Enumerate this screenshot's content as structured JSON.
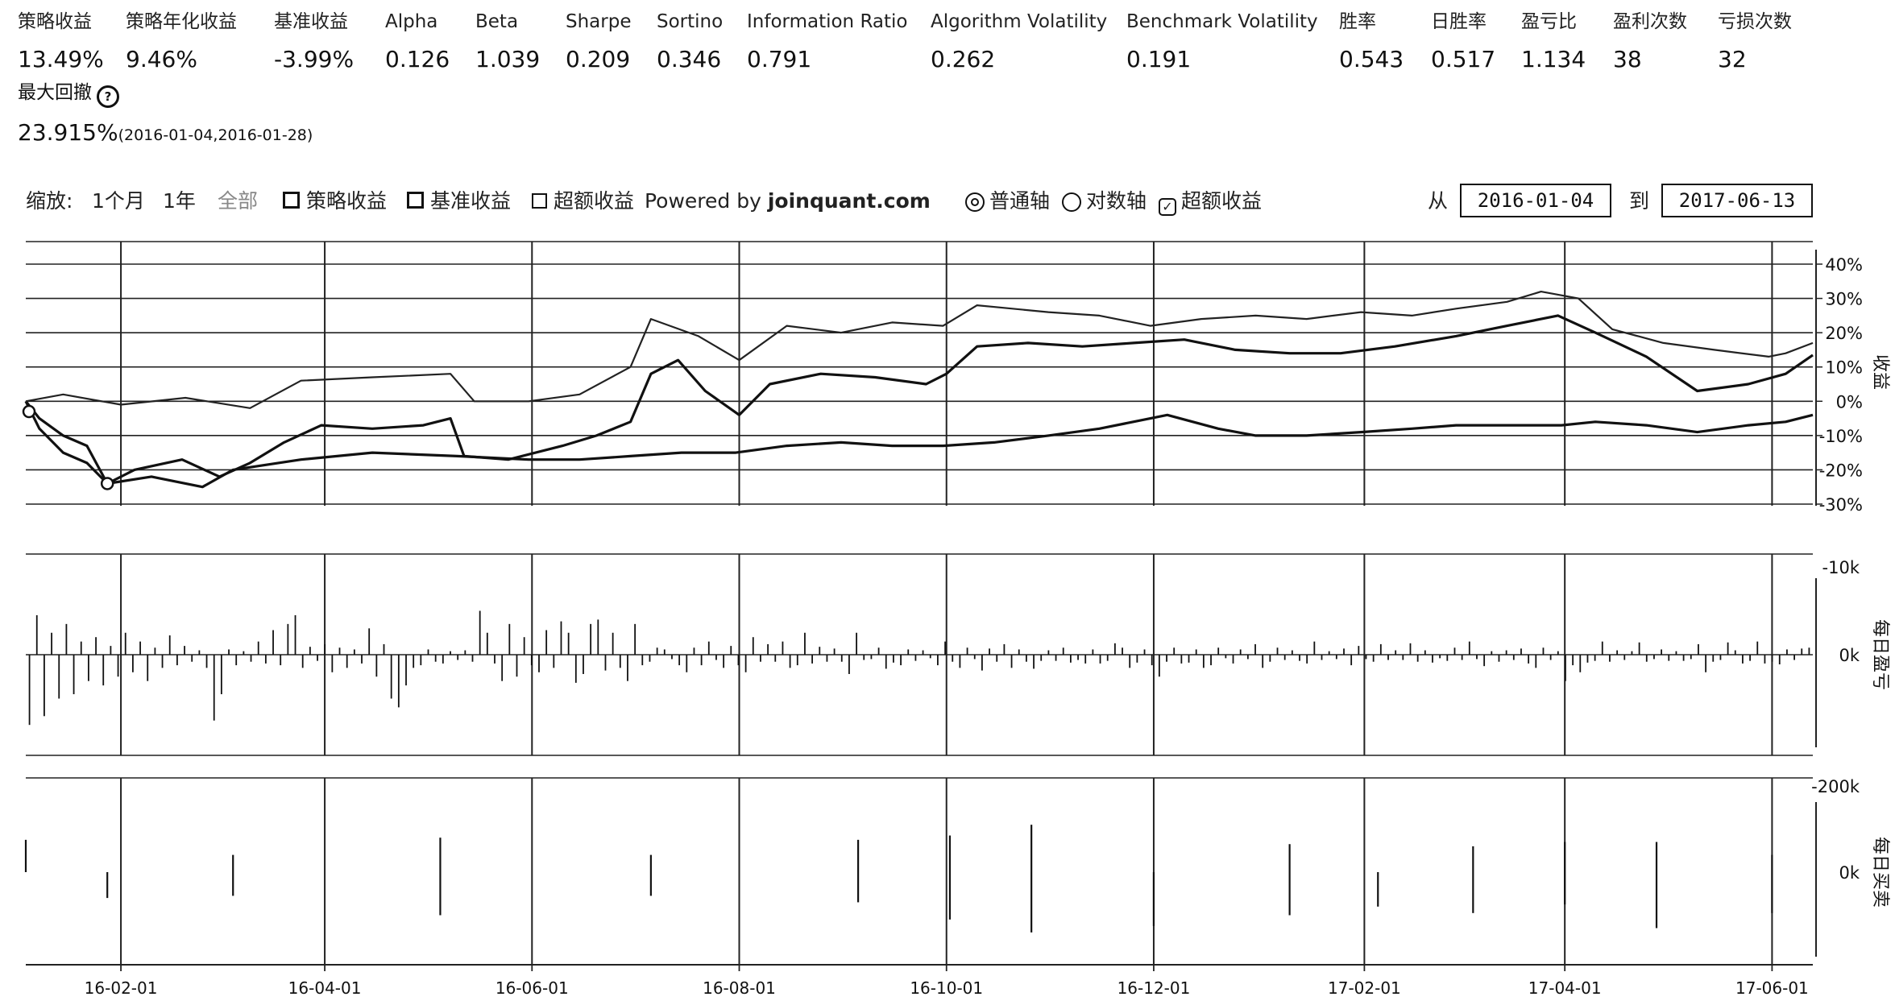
{
  "stats": [
    {
      "label": "策略收益",
      "value": "13.49%"
    },
    {
      "label": "策略年化收益",
      "value": "9.46%"
    },
    {
      "label": "基准收益",
      "value": "-3.99%"
    },
    {
      "label": "Alpha",
      "value": "0.126"
    },
    {
      "label": "Beta",
      "value": "1.039"
    },
    {
      "label": "Sharpe",
      "value": "0.209"
    },
    {
      "label": "Sortino",
      "value": "0.346"
    },
    {
      "label": "Information Ratio",
      "value": "0.791"
    },
    {
      "label": "Algorithm Volatility",
      "value": "0.262"
    },
    {
      "label": "Benchmark Volatility",
      "value": "0.191"
    },
    {
      "label": "胜率",
      "value": "0.543"
    },
    {
      "label": "日胜率",
      "value": "0.517"
    },
    {
      "label": "盈亏比",
      "value": "1.134"
    },
    {
      "label": "盈利次数",
      "value": "38"
    },
    {
      "label": "亏损次数",
      "value": "32"
    }
  ],
  "max_drawdown": {
    "label": "最大回撤",
    "icon": "question-circle-icon",
    "value": "23.915%",
    "period": "(2016-01-04,2016-01-28)"
  },
  "controls": {
    "zoom_label": "缩放:",
    "zoom_options": [
      "1个月",
      "1年",
      "全部"
    ],
    "series_toggles": [
      {
        "label": "策略收益",
        "checked": true
      },
      {
        "label": "基准收益",
        "checked": true
      },
      {
        "label": "超额收益",
        "checked": false
      }
    ],
    "powered_by": "Powered by",
    "brand": "joinquant.com",
    "axis_options": [
      {
        "label": "普通轴",
        "selected": true
      },
      {
        "label": "对数轴",
        "selected": false
      }
    ],
    "excess_checkbox": {
      "label": "超额收益",
      "checked": true
    },
    "from_label": "从",
    "from_date": "2016-01-04",
    "to_label": "到",
    "to_date": "2017-06-13"
  },
  "chart_data": [
    {
      "type": "line",
      "axis_title": "收益",
      "x_range": [
        "2016-01-04",
        "2017-06-13"
      ],
      "ylim": [
        -30,
        40
      ],
      "y_ticks": [
        "40%",
        "30%",
        "20%",
        "10%",
        "0%",
        "-10%",
        "-20%",
        "-30%"
      ],
      "x_ticks": [
        "16-02-01",
        "16-04-01",
        "16-06-01",
        "16-08-01",
        "16-10-01",
        "16-12-01",
        "17-02-01",
        "17-04-01",
        "17-06-01"
      ],
      "grid": true,
      "series": [
        {
          "name": "策略收益",
          "points": [
            [
              "2016-01-04",
              0
            ],
            [
              "2016-01-08",
              -5
            ],
            [
              "2016-01-15",
              -10
            ],
            [
              "2016-01-22",
              -13
            ],
            [
              "2016-01-28",
              -24
            ],
            [
              "2016-02-05",
              -20
            ],
            [
              "2016-02-19",
              -17
            ],
            [
              "2016-03-01",
              -22
            ],
            [
              "2016-03-10",
              -18
            ],
            [
              "2016-03-20",
              -12
            ],
            [
              "2016-03-31",
              -7
            ],
            [
              "2016-04-15",
              -8
            ],
            [
              "2016-04-30",
              -7
            ],
            [
              "2016-05-08",
              -5
            ],
            [
              "2016-05-12",
              -16
            ],
            [
              "2016-05-25",
              -17
            ],
            [
              "2016-06-10",
              -13
            ],
            [
              "2016-06-20",
              -10
            ],
            [
              "2016-06-30",
              -6
            ],
            [
              "2016-07-06",
              8
            ],
            [
              "2016-07-14",
              12
            ],
            [
              "2016-07-22",
              3
            ],
            [
              "2016-08-01",
              -4
            ],
            [
              "2016-08-10",
              5
            ],
            [
              "2016-08-25",
              8
            ],
            [
              "2016-09-10",
              7
            ],
            [
              "2016-09-25",
              5
            ],
            [
              "2016-10-01",
              8
            ],
            [
              "2016-10-10",
              16
            ],
            [
              "2016-10-25",
              17
            ],
            [
              "2016-11-10",
              16
            ],
            [
              "2016-11-25",
              17
            ],
            [
              "2016-12-10",
              18
            ],
            [
              "2016-12-25",
              15
            ],
            [
              "2017-01-10",
              14
            ],
            [
              "2017-01-25",
              14
            ],
            [
              "2017-02-10",
              16
            ],
            [
              "2017-02-28",
              19
            ],
            [
              "2017-03-15",
              22
            ],
            [
              "2017-03-30",
              25
            ],
            [
              "2017-04-10",
              20
            ],
            [
              "2017-04-25",
              13
            ],
            [
              "2017-05-10",
              3
            ],
            [
              "2017-05-25",
              5
            ],
            [
              "2017-06-05",
              8
            ],
            [
              "2017-06-13",
              13.49
            ]
          ]
        },
        {
          "name": "基准收益",
          "points": [
            [
              "2016-01-04",
              0
            ],
            [
              "2016-01-08",
              -8
            ],
            [
              "2016-01-15",
              -15
            ],
            [
              "2016-01-22",
              -18
            ],
            [
              "2016-01-28",
              -24
            ],
            [
              "2016-02-10",
              -22
            ],
            [
              "2016-02-25",
              -25
            ],
            [
              "2016-03-05",
              -20
            ],
            [
              "2016-03-25",
              -17
            ],
            [
              "2016-04-15",
              -15
            ],
            [
              "2016-05-10",
              -16
            ],
            [
              "2016-05-31",
              -17
            ],
            [
              "2016-06-15",
              -17
            ],
            [
              "2016-06-30",
              -16
            ],
            [
              "2016-07-15",
              -15
            ],
            [
              "2016-07-31",
              -15
            ],
            [
              "2016-08-15",
              -13
            ],
            [
              "2016-08-31",
              -12
            ],
            [
              "2016-09-15",
              -13
            ],
            [
              "2016-09-30",
              -13
            ],
            [
              "2016-10-15",
              -12
            ],
            [
              "2016-10-31",
              -10
            ],
            [
              "2016-11-15",
              -8
            ],
            [
              "2016-11-30",
              -5
            ],
            [
              "2016-12-05",
              -4
            ],
            [
              "2016-12-20",
              -8
            ],
            [
              "2016-12-31",
              -10
            ],
            [
              "2017-01-15",
              -10
            ],
            [
              "2017-01-31",
              -9
            ],
            [
              "2017-02-15",
              -8
            ],
            [
              "2017-02-28",
              -7
            ],
            [
              "2017-03-15",
              -7
            ],
            [
              "2017-03-31",
              -7
            ],
            [
              "2017-04-10",
              -6
            ],
            [
              "2017-04-25",
              -7
            ],
            [
              "2017-05-10",
              -9
            ],
            [
              "2017-05-25",
              -7
            ],
            [
              "2017-06-05",
              -6
            ],
            [
              "2017-06-13",
              -3.99
            ]
          ]
        },
        {
          "name": "超额收益",
          "points": [
            [
              "2016-01-04",
              0
            ],
            [
              "2016-01-15",
              2
            ],
            [
              "2016-02-01",
              -1
            ],
            [
              "2016-02-20",
              1
            ],
            [
              "2016-03-10",
              -2
            ],
            [
              "2016-03-25",
              6
            ],
            [
              "2016-04-15",
              7
            ],
            [
              "2016-05-08",
              8
            ],
            [
              "2016-05-15",
              0
            ],
            [
              "2016-05-31",
              0
            ],
            [
              "2016-06-15",
              2
            ],
            [
              "2016-06-30",
              10
            ],
            [
              "2016-07-06",
              24
            ],
            [
              "2016-07-20",
              19
            ],
            [
              "2016-08-01",
              12
            ],
            [
              "2016-08-15",
              22
            ],
            [
              "2016-08-31",
              20
            ],
            [
              "2016-09-15",
              23
            ],
            [
              "2016-09-30",
              22
            ],
            [
              "2016-10-10",
              28
            ],
            [
              "2016-10-31",
              26
            ],
            [
              "2016-11-15",
              25
            ],
            [
              "2016-11-30",
              22
            ],
            [
              "2016-12-15",
              24
            ],
            [
              "2016-12-31",
              25
            ],
            [
              "2017-01-15",
              24
            ],
            [
              "2017-01-31",
              26
            ],
            [
              "2017-02-15",
              25
            ],
            [
              "2017-02-28",
              27
            ],
            [
              "2017-03-15",
              29
            ],
            [
              "2017-03-25",
              32
            ],
            [
              "2017-04-05",
              30
            ],
            [
              "2017-04-15",
              21
            ],
            [
              "2017-04-30",
              17
            ],
            [
              "2017-05-15",
              15
            ],
            [
              "2017-05-31",
              13
            ],
            [
              "2017-06-05",
              14
            ],
            [
              "2017-06-13",
              17
            ]
          ]
        }
      ]
    },
    {
      "type": "bar",
      "axis_title": "每日盈亏",
      "y_ticks": [
        "0k",
        "-10k"
      ],
      "ylim": [
        -10000,
        6000
      ],
      "values": [
        -8000,
        4500,
        -7000,
        2500,
        -5000,
        3500,
        -4500,
        1500,
        -3000,
        2000,
        -3500,
        1000,
        -2500,
        2500,
        -2000,
        1500,
        -3000,
        800,
        -1500,
        2200,
        -1200,
        1000,
        -800,
        500,
        -1500,
        -7500,
        -4500,
        600,
        -1200,
        400,
        -800,
        1500,
        -1000,
        2800,
        -1200,
        3500,
        4500,
        -1500,
        900,
        -700,
        1200,
        -2000,
        800,
        -1500,
        600,
        -1000,
        3000,
        -2500,
        1200,
        -5000,
        -6000,
        -3500,
        -1500,
        -1200,
        600,
        -800,
        -1000,
        400,
        -600,
        500,
        -800,
        5000,
        2500,
        -1000,
        -3000,
        3500,
        -2500,
        2000,
        -1200,
        -2000,
        2800,
        -1500,
        3800,
        2500,
        -3200,
        -2200,
        3500,
        4000,
        -1800,
        2500,
        -1500,
        -3000,
        3500,
        -1200,
        -800,
        800,
        600,
        -500,
        -1200,
        -2000,
        800,
        -1200,
        1500,
        -600,
        -1500,
        1000,
        -1200,
        -2000,
        2000,
        -800,
        1200,
        -800,
        1500,
        -1500,
        -1200,
        2500,
        -1000,
        900,
        -800,
        700,
        -800,
        -2200,
        2500,
        -600,
        -500,
        800,
        -1600,
        -900,
        -1200,
        600,
        -700,
        500,
        -400,
        -1200,
        1500,
        -800,
        -1500,
        800,
        -500,
        -1800,
        700,
        -800,
        1200,
        -1500,
        600,
        -800,
        -1600,
        -700,
        500,
        -700,
        800,
        -900,
        -600,
        -1000,
        600,
        -1000,
        -700,
        1300,
        800,
        -1500,
        -900,
        600,
        -1200,
        -2500,
        -800,
        800,
        -1000,
        -900,
        600,
        -1500,
        -1200,
        800,
        -400,
        -1000,
        600,
        -500,
        1200,
        -1500,
        -800,
        800,
        -600,
        500,
        -700,
        -1000,
        1500,
        -600,
        400,
        -500,
        700,
        -1200,
        1000,
        -500,
        -800,
        1200,
        -600,
        500,
        -600,
        1300,
        -800,
        500,
        -900,
        -400,
        -700,
        800,
        -600,
        1500,
        -500,
        -1300,
        400,
        -800,
        500,
        -600,
        700,
        -1000,
        -1500,
        800,
        -600,
        400,
        -3000,
        -1200,
        -2000,
        -900,
        -700,
        1500,
        -800,
        500,
        -600,
        400,
        1400,
        -800,
        -500,
        600,
        -700,
        400,
        -700,
        -500,
        1200,
        -2000,
        -800,
        -600,
        1400,
        500,
        -1000,
        -700,
        1500,
        -1000,
        -800,
        -1100,
        600,
        -600,
        700,
        800
      ]
    },
    {
      "type": "bar",
      "axis_title": "每日买卖",
      "y_ticks": [
        "0k",
        "-200k"
      ],
      "ylim": [
        -200000,
        120000
      ],
      "values": [
        0,
        0,
        0,
        0,
        0,
        0,
        0,
        0,
        0,
        0,
        0,
        0,
        0,
        0,
        0,
        0,
        80000,
        -60000,
        0,
        0,
        0,
        0,
        0,
        0,
        0,
        0,
        0,
        0,
        0,
        0,
        0,
        0,
        0,
        0,
        0,
        0,
        0,
        0,
        0,
        0,
        50000,
        -60000,
        0,
        0,
        0,
        0,
        0,
        0,
        0,
        0,
        0,
        0,
        0,
        0,
        0,
        0,
        0,
        0,
        0,
        0,
        0,
        0,
        0,
        0,
        0,
        0,
        0,
        0,
        0,
        0,
        0,
        0,
        0,
        0,
        0,
        0,
        90000,
        -100000,
        0,
        0,
        0,
        0,
        0,
        0,
        0,
        0,
        0,
        0,
        0,
        0,
        0,
        0,
        0,
        0,
        0,
        0,
        0,
        0,
        0,
        0,
        0,
        0,
        0,
        0,
        0,
        0,
        0,
        0,
        0,
        0,
        0,
        0,
        50000,
        -60000,
        0,
        0,
        0,
        0,
        0,
        0,
        0,
        0,
        0,
        0,
        0,
        0,
        0,
        0,
        0,
        0,
        0,
        0,
        0,
        0,
        0,
        0,
        0,
        0,
        0,
        0,
        0,
        0,
        0,
        0,
        0,
        0,
        0,
        0,
        0,
        0,
        0,
        0,
        0,
        0,
        0,
        0,
        0,
        0,
        0,
        0,
        0,
        0,
        0,
        0,
        0,
        0,
        0,
        0,
        0,
        0,
        0,
        0,
        0,
        0,
        0,
        0,
        0,
        0,
        0,
        0,
        0,
        0,
        0,
        0,
        0,
        0,
        0,
        0,
        0,
        0,
        0,
        0,
        0,
        0,
        0,
        0,
        0,
        0,
        0,
        0,
        0,
        0,
        0,
        0,
        0,
        0,
        0,
        0,
        0,
        0,
        0,
        0,
        0,
        0,
        0,
        0,
        0,
        0,
        0,
        0,
        0,
        0,
        0,
        0,
        0,
        0,
        0,
        0,
        0,
        0,
        0,
        0,
        0,
        0,
        0,
        0,
        0,
        0,
        0,
        0,
        0,
        0,
        0,
        0,
        0,
        0,
        0,
        0,
        0,
        0,
        0,
        0,
        0,
        0,
        0,
        0,
        0,
        0,
        0,
        0,
        0,
        0,
        0,
        0,
        0,
        0,
        0,
        0,
        0,
        0,
        0,
        0,
        0,
        0,
        0,
        0,
        0,
        0,
        0,
        0,
        0,
        0
      ],
      "marks": [
        [
          "2016-01-04",
          75000,
          0
        ],
        [
          "2016-01-28",
          0,
          -60000
        ],
        [
          "2016-03-05",
          40000,
          -55000
        ],
        [
          "2016-05-05",
          80000,
          -100000
        ],
        [
          "2016-07-06",
          40000,
          -55000
        ],
        [
          "2016-09-05",
          75000,
          -70000
        ],
        [
          "2016-10-02",
          85000,
          -110000
        ],
        [
          "2016-10-26",
          110000,
          -140000
        ],
        [
          "2016-12-01",
          0,
          -125000
        ],
        [
          "2017-01-10",
          65000,
          -100000
        ],
        [
          "2017-02-05",
          0,
          -80000
        ],
        [
          "2017-03-05",
          60000,
          -95000
        ],
        [
          "2017-04-01",
          70000,
          -75000
        ],
        [
          "2017-04-28",
          70000,
          -130000
        ],
        [
          "2017-06-01",
          40000,
          -95000
        ]
      ]
    }
  ]
}
